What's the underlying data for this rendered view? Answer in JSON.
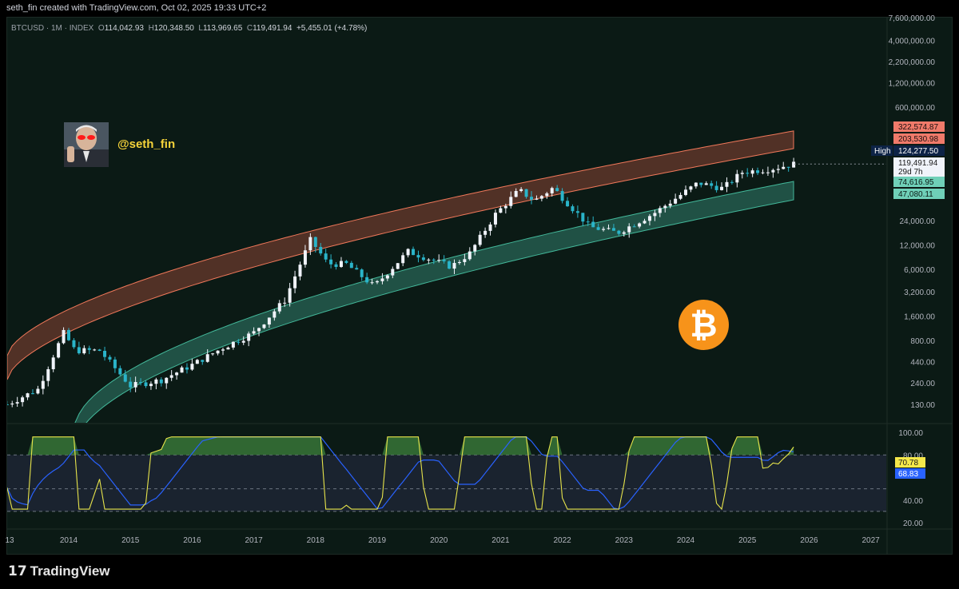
{
  "header": {
    "title": "seth_fin created with TradingView.com, Oct 02, 2025 19:33 UTC+2"
  },
  "legend": {
    "symbol": "BTCUSD · 1M · INDEX",
    "open_label": "O",
    "open": "114,042.93",
    "high_label": "H",
    "high": "120,348.50",
    "low_label": "L",
    "low": "113,969.65",
    "close_label": "C",
    "close": "119,491.94",
    "change": "+5,455.01 (+4.78%)"
  },
  "watermark": {
    "handle": "@seth_fin",
    "avatar_icon": "avatar-devil-eyes-icon",
    "coin_icon": "bitcoin-logo-icon",
    "coin_symbol": "₿"
  },
  "branding": {
    "name": "TradingView",
    "icon": "tradingview-logo-icon",
    "mark": "17"
  },
  "colors": {
    "up": "#f0f3fa",
    "down": "#2ab4c9",
    "upper_band": "#f0785a",
    "lower_band": "#43b89a",
    "rsi": "#e7e44b",
    "rsi_ma": "#2962ff",
    "background": "#0b1a15"
  },
  "price_axis": {
    "labels": [
      "7,600,000.00",
      "4,000,000.00",
      "2,200,000.00",
      "1,200,000.00",
      "600,000.00",
      "24,000.00",
      "12,000.00",
      "6,000.00",
      "3,200.00",
      "1,600.00",
      "800.00",
      "440.00",
      "240.00",
      "130.00"
    ],
    "badges": [
      {
        "text": "322,574.87",
        "bg": "#f07a6a",
        "fg": "#1a0f0f"
      },
      {
        "text": "203,530.98",
        "bg": "#f07a6a",
        "fg": "#1a0f0f"
      },
      {
        "text": "124,277.50",
        "bg": "#0d2346",
        "fg": "#ffffff",
        "tag": "High"
      },
      {
        "text": "119,491.94",
        "bg": "#f0f3fa",
        "fg": "#1a1a1a",
        "sub": "29d 7h"
      },
      {
        "text": "74,616.95",
        "bg": "#6fd0b8",
        "fg": "#0b1a15"
      },
      {
        "text": "47,080.11",
        "bg": "#6fd0b8",
        "fg": "#0b1a15"
      }
    ]
  },
  "rsi_axis": {
    "labels": [
      "100.00",
      "80.00",
      "40.00",
      "20.00"
    ],
    "badges": [
      {
        "text": "70.78",
        "bg": "#f5e84a",
        "fg": "#1a1a1a"
      },
      {
        "text": "68.83",
        "bg": "#2962ff",
        "fg": "#ffffff"
      }
    ]
  },
  "time_axis": {
    "labels": [
      "13",
      "2014",
      "2015",
      "2016",
      "2017",
      "2018",
      "2019",
      "2020",
      "2021",
      "2022",
      "2023",
      "2024",
      "2025",
      "2026",
      "2027"
    ]
  },
  "chart_data": {
    "type": "candlestick",
    "scale": "log",
    "interval": "1M",
    "series": [
      {
        "name": "BTCUSD",
        "closes": [
          [
            2013,
            130
          ],
          [
            2013.5,
            200
          ],
          [
            2013.92,
            1000
          ],
          [
            2014.1,
            600
          ],
          [
            2014.5,
            600
          ],
          [
            2015.0,
            220
          ],
          [
            2015.5,
            260
          ],
          [
            2016.0,
            400
          ],
          [
            2016.5,
            650
          ],
          [
            2017.0,
            1000
          ],
          [
            2017.5,
            2500
          ],
          [
            2017.92,
            14000
          ],
          [
            2018.2,
            7000
          ],
          [
            2018.5,
            7000
          ],
          [
            2018.95,
            3700
          ],
          [
            2019.5,
            10000
          ],
          [
            2020.2,
            6500
          ],
          [
            2020.5,
            9500
          ],
          [
            2020.92,
            29000
          ],
          [
            2021.3,
            57000
          ],
          [
            2021.55,
            42000
          ],
          [
            2021.85,
            61000
          ],
          [
            2022.45,
            20000
          ],
          [
            2022.9,
            17000
          ],
          [
            2023.5,
            30000
          ],
          [
            2024.2,
            70000
          ],
          [
            2024.6,
            60000
          ],
          [
            2024.92,
            95000
          ],
          [
            2025.4,
            105000
          ],
          [
            2025.75,
            119491.94
          ]
        ]
      }
    ],
    "indicators": {
      "rsi_overbought": 80,
      "rsi_oversold": 30,
      "rsi_value": 70.78,
      "rsi_ma_value": 68.83
    }
  }
}
